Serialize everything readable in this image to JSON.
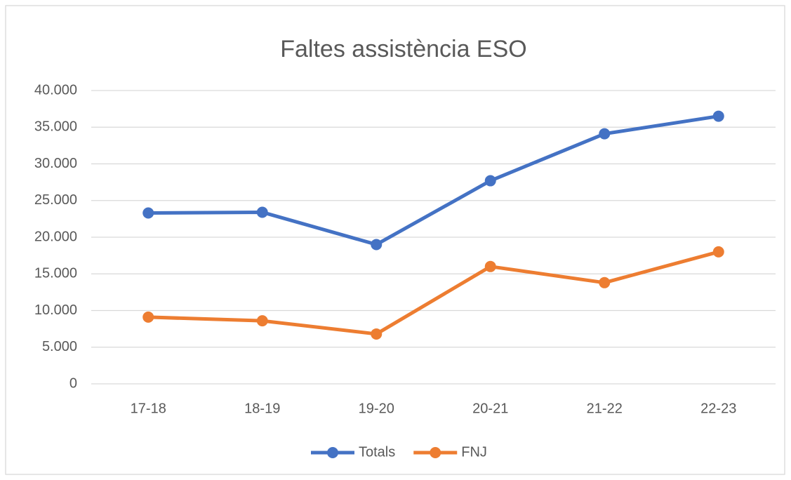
{
  "chart_data": {
    "type": "line",
    "title": "Faltes  assistència ESO",
    "categories": [
      "17-18",
      "18-19",
      "19-20",
      "20-21",
      "21-22",
      "22-23"
    ],
    "series": [
      {
        "name": "Totals",
        "color": "#4472c4",
        "values": [
          23300,
          23400,
          19000,
          27700,
          34100,
          36500
        ]
      },
      {
        "name": "FNJ",
        "color": "#ed7d31",
        "values": [
          9100,
          8600,
          6800,
          16000,
          13800,
          18000
        ]
      }
    ],
    "ylim": [
      0,
      40000
    ],
    "yticks": [
      0,
      {
        "value": 5000,
        "label": "5.000"
      },
      {
        "value": 10000,
        "label": "10.000"
      },
      {
        "value": 15000,
        "label": "15.000"
      },
      {
        "value": 20000,
        "label": "20.000"
      },
      {
        "value": 25000,
        "label": "25.000"
      },
      {
        "value": 30000,
        "label": "30.000"
      },
      {
        "value": 35000,
        "label": "35.000"
      },
      {
        "value": 40000,
        "label": "40.000"
      }
    ],
    "grid": true,
    "legend": "bottom"
  }
}
